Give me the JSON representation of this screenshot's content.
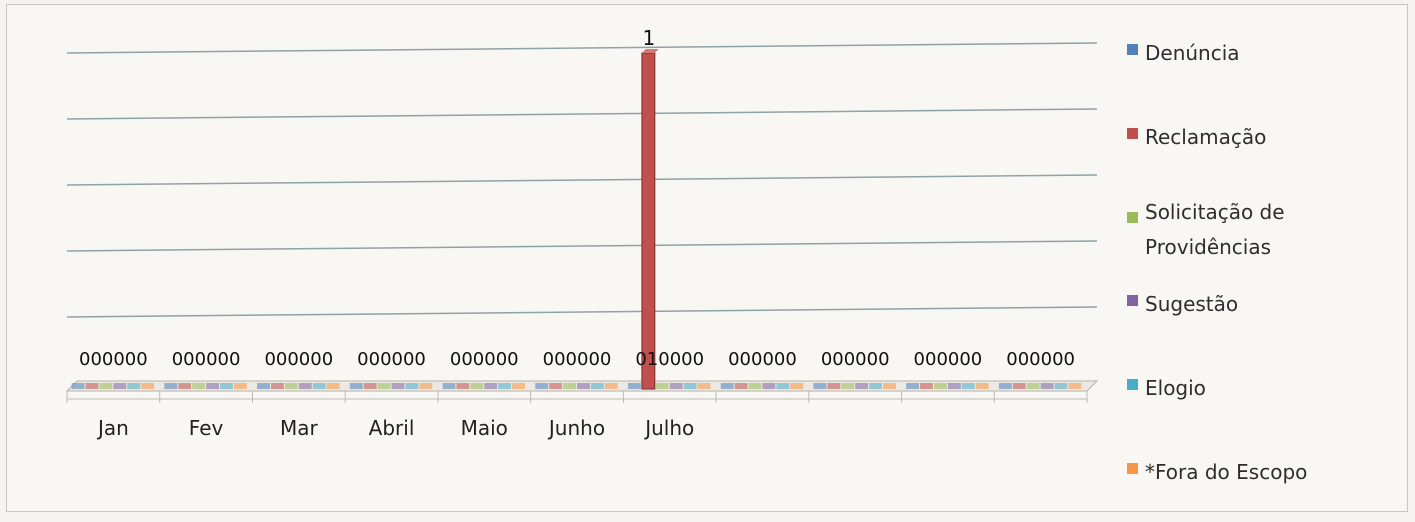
{
  "chart_data": {
    "type": "bar",
    "categories": [
      "Jan",
      "Fev",
      "Mar",
      "Abril",
      "Maio",
      "Junho",
      "Julho",
      "",
      "",
      "",
      ""
    ],
    "series": [
      {
        "name": "Denúncia",
        "color": "#4f81bd",
        "values": [
          0,
          0,
          0,
          0,
          0,
          0,
          0,
          0,
          0,
          0,
          0
        ]
      },
      {
        "name": "Reclamação",
        "color": "#c0504d",
        "values": [
          0,
          0,
          0,
          0,
          0,
          0,
          1,
          0,
          0,
          0,
          0
        ]
      },
      {
        "name": "Solicitação de Providências",
        "color": "#9bbb59",
        "values": [
          0,
          0,
          0,
          0,
          0,
          0,
          0,
          0,
          0,
          0,
          0
        ]
      },
      {
        "name": "Sugestão",
        "color": "#8064a2",
        "values": [
          0,
          0,
          0,
          0,
          0,
          0,
          0,
          0,
          0,
          0,
          0
        ]
      },
      {
        "name": "Elogio",
        "color": "#4bacc6",
        "values": [
          0,
          0,
          0,
          0,
          0,
          0,
          0,
          0,
          0,
          0,
          0
        ]
      },
      {
        "name": "*Fora do Escopo",
        "color": "#f79646",
        "values": [
          0,
          0,
          0,
          0,
          0,
          0,
          0,
          0,
          0,
          0,
          0
        ]
      }
    ],
    "ylim": [
      0,
      1
    ],
    "grid": true,
    "legend_position": "right"
  }
}
